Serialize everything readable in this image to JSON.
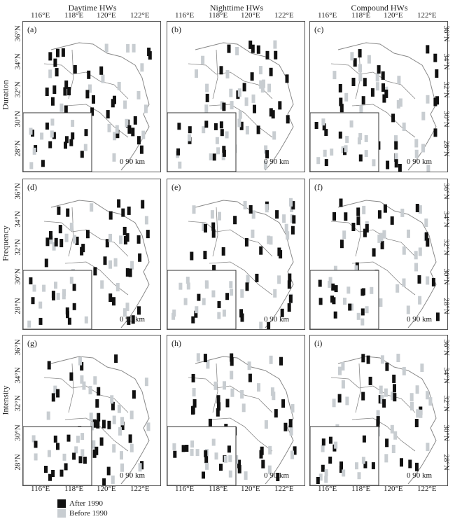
{
  "columns": [
    "Daytime HWs",
    "Nighttime HWs",
    "Compound HWs"
  ],
  "rows": [
    "Duration",
    "Frequency",
    "Intensity"
  ],
  "panel_labels": [
    "(a)",
    "(b)",
    "(c)",
    "(d)",
    "(e)",
    "(f)",
    "(g)",
    "(h)",
    "(i)"
  ],
  "lon_ticks": [
    "116°E",
    "118°E",
    "120°E",
    "122°E"
  ],
  "lat_ticks": [
    "36°N",
    "34°N",
    "32°N",
    "30°N",
    "28°N"
  ],
  "scale_bar": "0 90 km",
  "legend": [
    {
      "label": "After 1990",
      "color": "#111111"
    },
    {
      "label": "Before 1990",
      "color": "#c8cdd1"
    }
  ],
  "colors": {
    "after": "#111111",
    "before": "#c8cdd1",
    "coast": "#888888",
    "border": "#555555"
  }
}
